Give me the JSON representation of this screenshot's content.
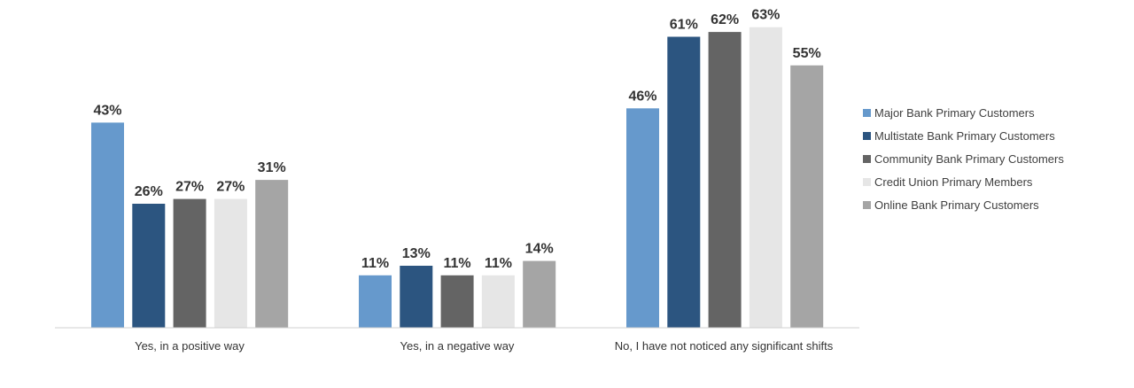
{
  "chart_data": {
    "type": "bar",
    "categories": [
      "Yes, in a positive way",
      "Yes, in a negative way",
      "No, I have not noticed any significant shifts"
    ],
    "series": [
      {
        "name": "Major Bank Primary Customers",
        "color": "#6699CC",
        "values": [
          43,
          11,
          46
        ]
      },
      {
        "name": "Multistate Bank Primary Customers",
        "color": "#2C5580",
        "values": [
          26,
          13,
          61
        ]
      },
      {
        "name": "Community Bank Primary Customers",
        "color": "#646464",
        "values": [
          27,
          11,
          62
        ]
      },
      {
        "name": "Credit Union Primary Members",
        "color": "#E6E6E6",
        "values": [
          27,
          11,
          63
        ]
      },
      {
        "name": "Online Bank Primary Customers",
        "color": "#A5A5A5",
        "values": [
          31,
          14,
          55
        ]
      }
    ],
    "value_suffix": "%",
    "ylim": [
      0,
      65
    ],
    "grid": false,
    "legend_position": "right"
  }
}
